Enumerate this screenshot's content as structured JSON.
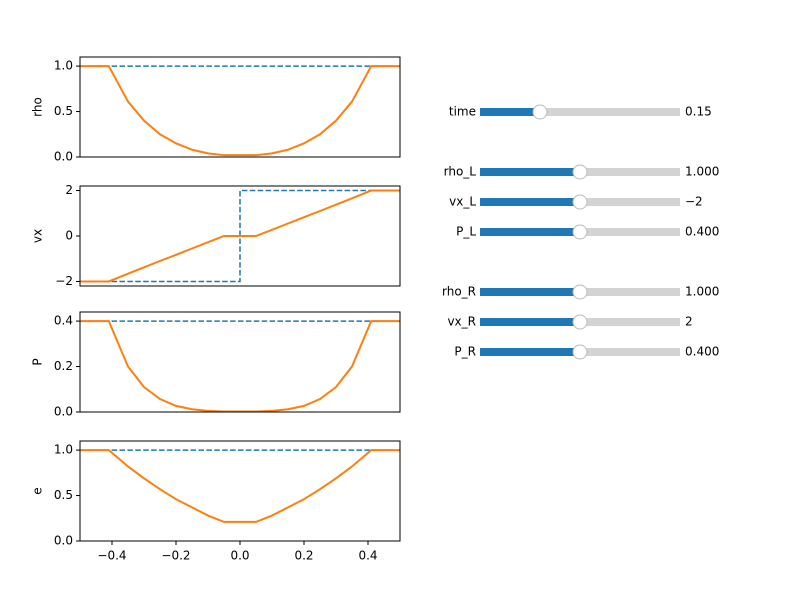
{
  "chart_data": [
    {
      "type": "line",
      "ylabel": "rho",
      "xlim": [
        -0.5,
        0.5
      ],
      "ylim": [
        0,
        1.1
      ],
      "yticks": [
        {
          "value": 0,
          "label": "0.0"
        },
        {
          "value": 0.5,
          "label": "0.5"
        },
        {
          "value": 1,
          "label": "1.0"
        }
      ],
      "series": [
        {
          "color": "#1f77b4",
          "style": "dashed",
          "x": [
            -0.5,
            0.5
          ],
          "values": [
            1,
            1
          ]
        },
        {
          "color": "#ff7f0e",
          "style": "solid",
          "x": [
            -0.5,
            -0.41,
            -0.35,
            -0.3,
            -0.25,
            -0.2,
            -0.15,
            -0.1,
            -0.05,
            0,
            0.05,
            0.1,
            0.15,
            0.2,
            0.25,
            0.3,
            0.35,
            0.41,
            0.5
          ],
          "values": [
            1,
            1,
            0.61,
            0.4,
            0.25,
            0.15,
            0.08,
            0.04,
            0.02,
            0.02,
            0.02,
            0.04,
            0.08,
            0.15,
            0.25,
            0.4,
            0.61,
            1,
            1
          ]
        }
      ]
    },
    {
      "type": "line",
      "ylabel": "vx",
      "xlim": [
        -0.5,
        0.5
      ],
      "ylim": [
        -2.2,
        2.2
      ],
      "yticks": [
        {
          "value": -2,
          "label": "−2"
        },
        0,
        2
      ],
      "series": [
        {
          "color": "#1f77b4",
          "style": "dashed",
          "x": [
            -0.5,
            0,
            0,
            0.5
          ],
          "values": [
            -2,
            -2,
            2,
            2
          ]
        },
        {
          "color": "#ff7f0e",
          "style": "solid",
          "x": [
            -0.5,
            -0.41,
            -0.35,
            -0.3,
            -0.25,
            -0.2,
            -0.15,
            -0.1,
            -0.05,
            0,
            0.05,
            0.1,
            0.15,
            0.2,
            0.25,
            0.3,
            0.35,
            0.41,
            0.5
          ],
          "values": [
            -2,
            -2,
            -1.66,
            -1.38,
            -1.1,
            -0.83,
            -0.55,
            -0.27,
            0,
            0,
            0,
            0.27,
            0.55,
            0.83,
            1.1,
            1.38,
            1.66,
            2,
            2
          ]
        }
      ]
    },
    {
      "type": "line",
      "ylabel": "P",
      "xlim": [
        -0.5,
        0.5
      ],
      "ylim": [
        0,
        0.44
      ],
      "yticks": [
        {
          "value": 0,
          "label": "0.0"
        },
        {
          "value": 0.2,
          "label": "0.2"
        },
        {
          "value": 0.4,
          "label": "0.4"
        }
      ],
      "series": [
        {
          "color": "#1f77b4",
          "style": "dashed",
          "x": [
            -0.5,
            0.5
          ],
          "values": [
            0.4,
            0.4
          ]
        },
        {
          "color": "#ff7f0e",
          "style": "solid",
          "x": [
            -0.5,
            -0.41,
            -0.35,
            -0.3,
            -0.25,
            -0.2,
            -0.15,
            -0.1,
            -0.05,
            0,
            0.05,
            0.1,
            0.15,
            0.2,
            0.25,
            0.3,
            0.35,
            0.41,
            0.5
          ],
          "values": [
            0.4,
            0.4,
            0.2,
            0.11,
            0.057,
            0.027,
            0.012,
            0.005,
            0.002,
            0.002,
            0.002,
            0.005,
            0.012,
            0.027,
            0.057,
            0.11,
            0.2,
            0.4,
            0.4
          ]
        }
      ]
    },
    {
      "type": "line",
      "ylabel": "e",
      "xlim": [
        -0.5,
        0.5
      ],
      "ylim": [
        0,
        1.1
      ],
      "xticks": [
        {
          "value": -0.4,
          "label": "−0.4"
        },
        {
          "value": -0.2,
          "label": "−0.2"
        },
        {
          "value": 0,
          "label": "0.0"
        },
        {
          "value": 0.2,
          "label": "0.2"
        },
        {
          "value": 0.4,
          "label": "0.4"
        }
      ],
      "yticks": [
        {
          "value": 0,
          "label": "0.0"
        },
        {
          "value": 0.5,
          "label": "0.5"
        },
        {
          "value": 1,
          "label": "1.0"
        }
      ],
      "series": [
        {
          "color": "#1f77b4",
          "style": "dashed",
          "x": [
            -0.5,
            0.5
          ],
          "values": [
            1,
            1
          ]
        },
        {
          "color": "#ff7f0e",
          "style": "solid",
          "x": [
            -0.5,
            -0.41,
            -0.35,
            -0.3,
            -0.25,
            -0.2,
            -0.15,
            -0.1,
            -0.05,
            0,
            0.05,
            0.1,
            0.15,
            0.2,
            0.25,
            0.3,
            0.35,
            0.41,
            0.5
          ],
          "values": [
            1,
            1,
            0.82,
            0.69,
            0.57,
            0.46,
            0.37,
            0.28,
            0.21,
            0.21,
            0.21,
            0.28,
            0.37,
            0.46,
            0.57,
            0.69,
            0.82,
            1,
            1
          ]
        }
      ]
    }
  ],
  "sliders": [
    {
      "label": "time",
      "value": 0.15,
      "value_label": "0.15",
      "range": [
        0,
        0.5
      ]
    },
    {
      "label": "rho_L",
      "value": 1,
      "value_label": "1.000",
      "range": [
        0,
        2
      ]
    },
    {
      "label": "vx_L",
      "value": -2,
      "value_label": "−2",
      "range": [
        -4,
        0
      ]
    },
    {
      "label": "P_L",
      "value": 0.4,
      "value_label": "0.400",
      "range": [
        0,
        0.8
      ]
    },
    {
      "label": "rho_R",
      "value": 1,
      "value_label": "1.000",
      "range": [
        0,
        2
      ]
    },
    {
      "label": "vx_R",
      "value": 2,
      "value_label": "2",
      "range": [
        0,
        4
      ]
    },
    {
      "label": "P_R",
      "value": 0.4,
      "value_label": "0.400",
      "range": [
        0,
        0.8
      ]
    }
  ]
}
